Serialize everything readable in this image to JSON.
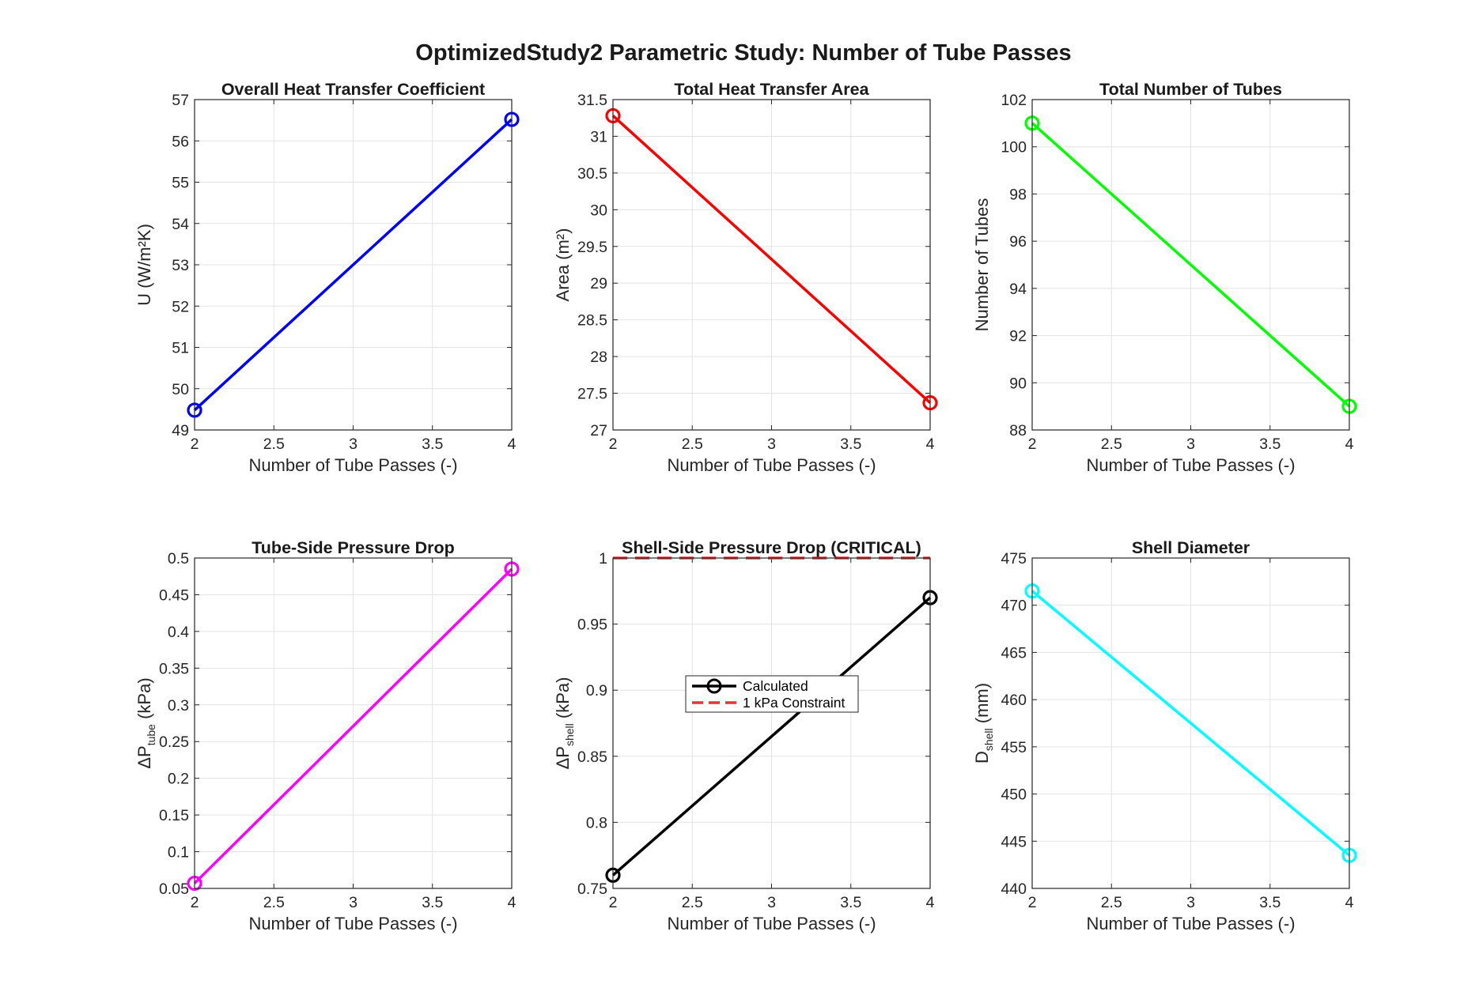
{
  "figure_title": "OptimizedStudy2 Parametric Study: Number of Tube Passes",
  "chart_data": [
    {
      "type": "line",
      "title": "Overall Heat Transfer Coefficient",
      "xlabel": "Number of Tube Passes (-)",
      "ylabel": {
        "main": "U (W/m²K)",
        "sub": "",
        "rest": ""
      },
      "x": [
        2,
        4
      ],
      "series": [
        {
          "values": [
            49.48,
            56.52
          ],
          "color": "#0000ff",
          "marker": "circle"
        }
      ],
      "xlim": [
        2,
        4
      ],
      "ylim": [
        49,
        57
      ],
      "xticks": [
        2,
        2.5,
        3,
        3.5,
        4
      ],
      "xtick_labels": [
        "2",
        "2.5",
        "3",
        "3.5",
        "4"
      ],
      "yticks": [
        49,
        50,
        51,
        52,
        53,
        54,
        55,
        56,
        57
      ],
      "ytick_labels": [
        "49",
        "50",
        "51",
        "52",
        "53",
        "54",
        "55",
        "56",
        "57"
      ],
      "grid": true
    },
    {
      "type": "line",
      "title": "Total Heat Transfer Area",
      "xlabel": "Number of Tube Passes (-)",
      "ylabel": {
        "main": "Area (m²)",
        "sub": "",
        "rest": ""
      },
      "x": [
        2,
        4
      ],
      "series": [
        {
          "values": [
            31.28,
            27.37
          ],
          "color": "#ff0000",
          "marker": "circle"
        }
      ],
      "xlim": [
        2,
        4
      ],
      "ylim": [
        27,
        31.5
      ],
      "xticks": [
        2,
        2.5,
        3,
        3.5,
        4
      ],
      "xtick_labels": [
        "2",
        "2.5",
        "3",
        "3.5",
        "4"
      ],
      "yticks": [
        27,
        27.5,
        28,
        28.5,
        29,
        29.5,
        30,
        30.5,
        31,
        31.5
      ],
      "ytick_labels": [
        "27",
        "27.5",
        "28",
        "28.5",
        "29",
        "29.5",
        "30",
        "30.5",
        "31",
        "31.5"
      ],
      "grid": true
    },
    {
      "type": "line",
      "title": "Total Number of Tubes",
      "xlabel": "Number of Tube Passes (-)",
      "ylabel": {
        "main": "Number of Tubes",
        "sub": "",
        "rest": ""
      },
      "x": [
        2,
        4
      ],
      "series": [
        {
          "values": [
            101,
            89
          ],
          "color": "#00ff00",
          "marker": "circle"
        }
      ],
      "xlim": [
        2,
        4
      ],
      "ylim": [
        88,
        102
      ],
      "xticks": [
        2,
        2.5,
        3,
        3.5,
        4
      ],
      "xtick_labels": [
        "2",
        "2.5",
        "3",
        "3.5",
        "4"
      ],
      "yticks": [
        88,
        90,
        92,
        94,
        96,
        98,
        100,
        102
      ],
      "ytick_labels": [
        "88",
        "90",
        "92",
        "94",
        "96",
        "98",
        "100",
        "102"
      ],
      "grid": true
    },
    {
      "type": "line",
      "title": "Tube-Side Pressure Drop",
      "xlabel": "Number of Tube Passes (-)",
      "ylabel": {
        "main": "ΔP",
        "sub": "tube",
        "rest": " (kPa)"
      },
      "x": [
        2,
        4
      ],
      "series": [
        {
          "values": [
            0.057,
            0.485
          ],
          "color": "#ff00ff",
          "marker": "circle"
        }
      ],
      "xlim": [
        2,
        4
      ],
      "ylim": [
        0.05,
        0.5
      ],
      "xticks": [
        2,
        2.5,
        3,
        3.5,
        4
      ],
      "xtick_labels": [
        "2",
        "2.5",
        "3",
        "3.5",
        "4"
      ],
      "yticks": [
        0.05,
        0.1,
        0.15,
        0.2,
        0.25,
        0.3,
        0.35,
        0.4,
        0.45,
        0.5
      ],
      "ytick_labels": [
        "0.05",
        "0.1",
        "0.15",
        "0.2",
        "0.25",
        "0.3",
        "0.35",
        "0.4",
        "0.45",
        "0.5"
      ],
      "grid": true
    },
    {
      "type": "line",
      "title": "Shell-Side Pressure Drop (CRITICAL)",
      "xlabel": "Number of Tube Passes (-)",
      "ylabel": {
        "main": "ΔP",
        "sub": "shell",
        "rest": " (kPa)"
      },
      "x": [
        2,
        4
      ],
      "series": [
        {
          "name": "Calculated",
          "values": [
            0.76,
            0.97
          ],
          "color": "#000000",
          "marker": "circle"
        },
        {
          "name": "1 kPa Constraint",
          "values": [
            1,
            1
          ],
          "color": "#e63333",
          "dashed": true
        }
      ],
      "legend": "center",
      "xlim": [
        2,
        4
      ],
      "ylim": [
        0.75,
        1
      ],
      "xticks": [
        2,
        2.5,
        3,
        3.5,
        4
      ],
      "xtick_labels": [
        "2",
        "2.5",
        "3",
        "3.5",
        "4"
      ],
      "yticks": [
        0.75,
        0.8,
        0.85,
        0.9,
        0.95,
        1
      ],
      "ytick_labels": [
        "0.75",
        "0.8",
        "0.85",
        "0.9",
        "0.95",
        "1"
      ],
      "grid": true
    },
    {
      "type": "line",
      "title": "Shell Diameter",
      "xlabel": "Number of Tube Passes (-)",
      "ylabel": {
        "main": "D",
        "sub": "shell",
        "rest": " (mm)"
      },
      "x": [
        2,
        4
      ],
      "series": [
        {
          "values": [
            471.5,
            443.5
          ],
          "color": "#00ffff",
          "marker": "circle"
        }
      ],
      "xlim": [
        2,
        4
      ],
      "ylim": [
        440,
        475
      ],
      "xticks": [
        2,
        2.5,
        3,
        3.5,
        4
      ],
      "xtick_labels": [
        "2",
        "2.5",
        "3",
        "3.5",
        "4"
      ],
      "yticks": [
        440,
        445,
        450,
        455,
        460,
        465,
        470,
        475
      ],
      "ytick_labels": [
        "440",
        "445",
        "450",
        "455",
        "460",
        "465",
        "470",
        "475"
      ],
      "grid": true
    }
  ]
}
